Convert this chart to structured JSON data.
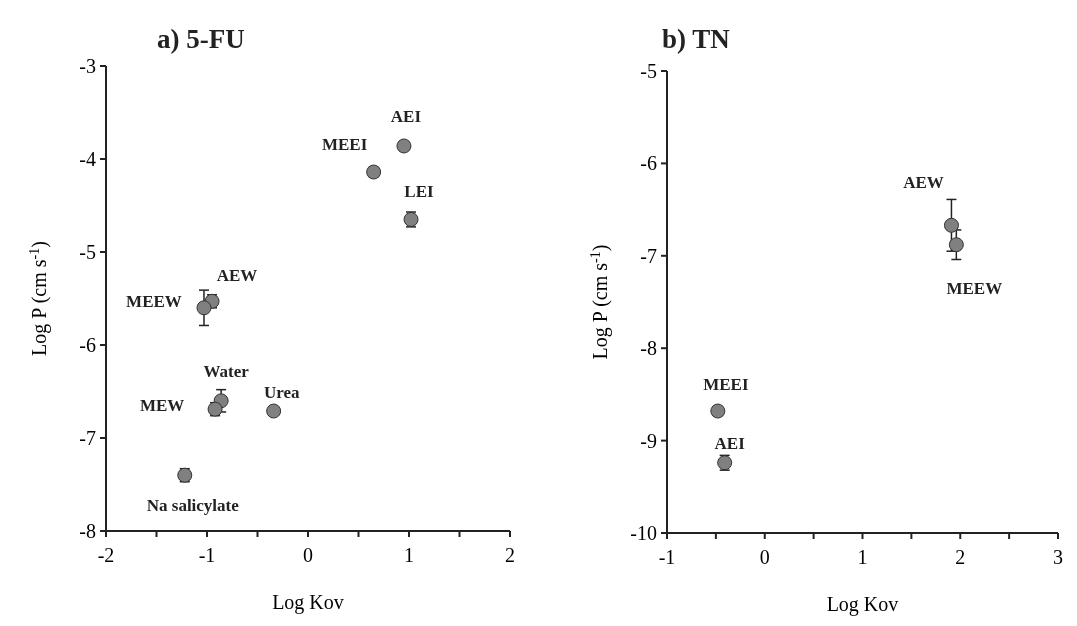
{
  "chart_data": [
    {
      "type": "scatter",
      "title": "a) 5-FU",
      "xlabel": "Log Kov",
      "ylabel": "Log P (cm s$^{-1}$)",
      "marker": "circle",
      "xlim": [
        -2,
        2
      ],
      "xticks": [
        -2,
        {
          "value": -1.5,
          "label": null
        },
        -1,
        {
          "value": -0.5,
          "label": null
        },
        0,
        {
          "value": 0.5,
          "label": null
        },
        1,
        {
          "value": 1.5,
          "label": null
        },
        2
      ],
      "ylim": [
        -8,
        -3
      ],
      "yticks": [
        -8,
        -7,
        -6,
        -5,
        -4,
        -3
      ],
      "series": [
        {
          "color": "#808080",
          "x": [
            0.95,
            0.65,
            1.02,
            -0.95,
            -1.03,
            -0.86,
            -0.92,
            -0.34,
            -1.22
          ],
          "values": [
            -3.86,
            -4.14,
            -4.65,
            -5.53,
            -5.6,
            -6.6,
            -6.69,
            -6.71,
            -7.4
          ],
          "errors": [
            null,
            0.05,
            0.08,
            0.07,
            0.19,
            0.12,
            0.07,
            null,
            0.07
          ]
        }
      ],
      "annotations": [
        {
          "text": "AEI",
          "x": 0.95,
          "y": -3.86
        },
        {
          "text": "MEEI",
          "x": 0.65,
          "y": -4.14
        },
        {
          "text": "LEI",
          "x": 1.02,
          "y": -4.65
        },
        {
          "text": "AEW",
          "x": -0.95,
          "y": -5.53
        },
        {
          "text": "MEEW",
          "x": -1.03,
          "y": -5.6
        },
        {
          "text": "Water",
          "x": -0.86,
          "y": -6.6
        },
        {
          "text": "MEW",
          "x": -0.92,
          "y": -6.69
        },
        {
          "text": "Urea",
          "x": -0.34,
          "y": -6.71
        },
        {
          "text": "Na salicylate",
          "x": -1.22,
          "y": -7.4
        }
      ]
    },
    {
      "type": "scatter",
      "title": "b) TN",
      "xlabel": "Log Kov",
      "ylabel": "Log P (cm s$^{-1}$)",
      "marker": "circle",
      "xlim": [
        -1,
        3
      ],
      "xticks": [
        -1,
        {
          "value": -0.5,
          "label": null
        },
        0,
        {
          "value": 0.5,
          "label": null
        },
        1,
        {
          "value": 1.5,
          "label": null
        },
        2,
        {
          "value": 2.5,
          "label": null
        },
        3
      ],
      "ylim": [
        -10,
        -5
      ],
      "yticks": [
        -10,
        -9,
        -8,
        -7,
        -6,
        -5
      ],
      "series": [
        {
          "color": "#808080",
          "x": [
            1.91,
            1.96,
            -0.48,
            -0.41
          ],
          "values": [
            -6.67,
            -6.88,
            -8.68,
            -9.24
          ],
          "errors": [
            0.28,
            0.16,
            0.05,
            0.08
          ]
        }
      ],
      "annotations": [
        {
          "text": "AEW",
          "x": 1.91,
          "y": -6.67
        },
        {
          "text": "MEEW",
          "x": 1.96,
          "y": -6.88
        },
        {
          "text": "MEEI",
          "x": -0.48,
          "y": -8.68
        },
        {
          "text": "AEI",
          "x": -0.41,
          "y": -9.24
        }
      ]
    }
  ]
}
